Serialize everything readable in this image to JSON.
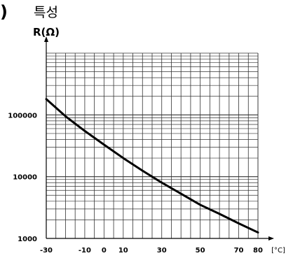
{
  "page": {
    "corner_mark": ")",
    "heading": "특성"
  },
  "chart_data": {
    "type": "line",
    "title": "",
    "xlabel": "[°C]",
    "ylabel": "R(Ω)",
    "yscale": "log",
    "xlim": [
      -30,
      80
    ],
    "ylim": [
      1000,
      1000000
    ],
    "x_ticks": [
      -30,
      -10,
      0,
      10,
      30,
      50,
      70,
      80
    ],
    "y_ticks": [
      1000,
      10000,
      100000
    ],
    "y_tick_labels": [
      "1000",
      "10000",
      "100000"
    ],
    "grid": true,
    "grid_x_step": 5,
    "colors": {
      "line": "#000000",
      "grid": "#333333",
      "axis": "#000000"
    },
    "series": [
      {
        "x": [
          -30,
          -20,
          -10,
          0,
          10,
          20,
          30,
          40,
          50,
          60,
          70,
          80
        ],
        "y": [
          180000,
          95000,
          55000,
          33000,
          20000,
          12500,
          8000,
          5300,
          3500,
          2500,
          1750,
          1250
        ]
      }
    ]
  }
}
